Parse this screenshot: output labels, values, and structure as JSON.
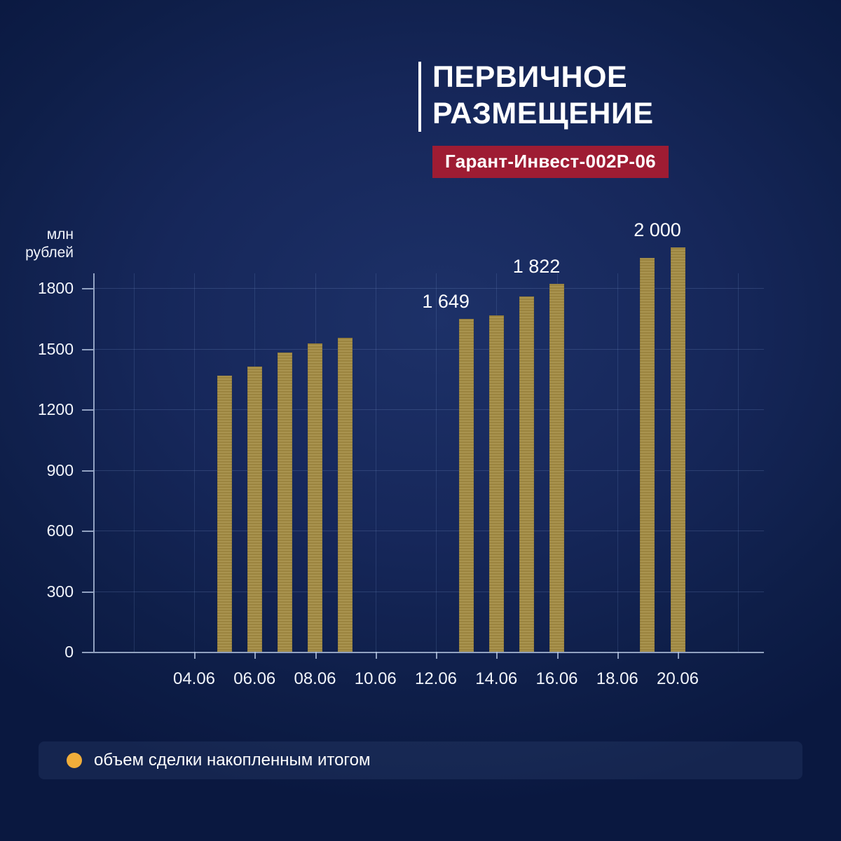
{
  "title": {
    "line1": "ПЕРВИЧНОЕ",
    "line2": "РАЗМЕЩЕНИЕ"
  },
  "badge": {
    "label": "Гарант-Инвест-002Р-06"
  },
  "y_axis_unit": {
    "line1": "млн",
    "line2": "рублей"
  },
  "legend": {
    "label": "объем сделки накопленным итогом",
    "dot_color": "#f0ad3a"
  },
  "colors": {
    "bar": "#a38b42",
    "badge_bg": "#9e1c33",
    "background_center": "#1d3168",
    "background_edge": "#0a1840",
    "grid": "rgba(130,158,214,0.2)"
  },
  "chart_data": {
    "type": "bar",
    "title": "ПЕРВИЧНОЕ РАЗМЕЩЕНИЕ",
    "subtitle": "Гарант-Инвест-002Р-06",
    "ylabel": "млн рублей",
    "series_name": "объем сделки накопленным итогом",
    "y_ticks": [
      {
        "value": 0,
        "label": "0"
      },
      {
        "value": 300,
        "label": "300"
      },
      {
        "value": 600,
        "label": "600"
      },
      {
        "value": 900,
        "label": "900"
      },
      {
        "value": 1200,
        "label": "1200"
      },
      {
        "value": 1500,
        "label": "1500"
      },
      {
        "value": 1800,
        "label": "1800"
      }
    ],
    "x_ticks": [
      {
        "day": 4,
        "label": "04.06"
      },
      {
        "day": 6,
        "label": "06.06"
      },
      {
        "day": 8,
        "label": "08.06"
      },
      {
        "day": 10,
        "label": "10.06"
      },
      {
        "day": 12,
        "label": "12.06"
      },
      {
        "day": 14,
        "label": "14.06"
      },
      {
        "day": 16,
        "label": "16.06"
      },
      {
        "day": 18,
        "label": "18.06"
      },
      {
        "day": 20,
        "label": "20.06"
      }
    ],
    "ylim": [
      0,
      2075
    ],
    "grid": true,
    "legend_position": "bottom",
    "points": [
      {
        "day": 5,
        "date": "05.06",
        "value": 1365
      },
      {
        "day": 6,
        "date": "06.06",
        "value": 1410
      },
      {
        "day": 7,
        "date": "07.06",
        "value": 1480
      },
      {
        "day": 8,
        "date": "08.06",
        "value": 1525
      },
      {
        "day": 9,
        "date": "09.06",
        "value": 1555
      },
      {
        "day": 13,
        "date": "13.06",
        "value": 1649,
        "data_label": "1 649"
      },
      {
        "day": 14,
        "date": "14.06",
        "value": 1665
      },
      {
        "day": 15,
        "date": "15.06",
        "value": 1760
      },
      {
        "day": 16,
        "date": "16.06",
        "value": 1822,
        "data_label": "1 822"
      },
      {
        "day": 19,
        "date": "19.06",
        "value": 1950
      },
      {
        "day": 20,
        "date": "20.06",
        "value": 2000,
        "data_label": "2 000"
      }
    ]
  }
}
